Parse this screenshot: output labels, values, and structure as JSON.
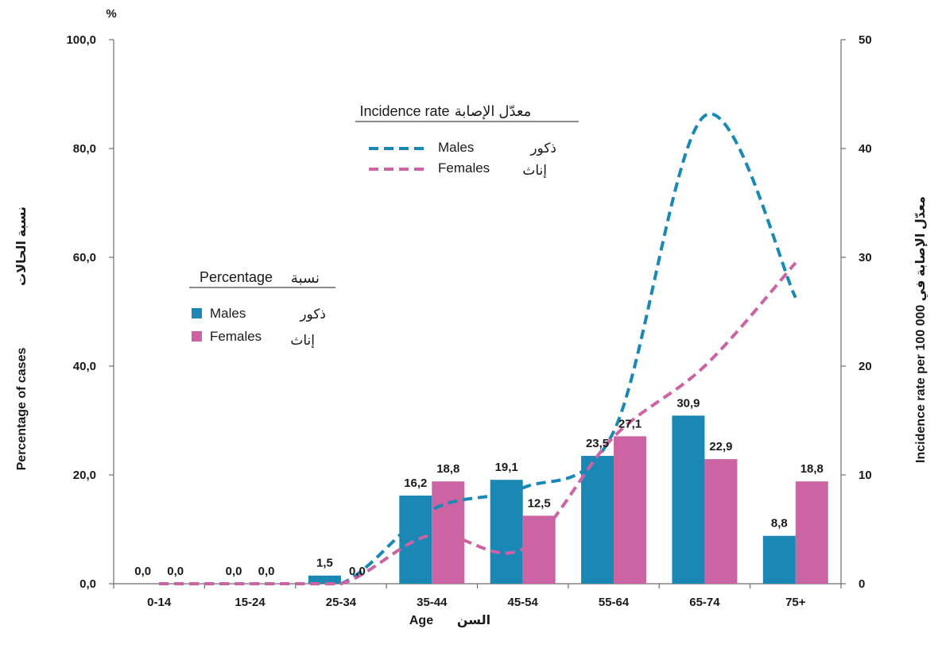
{
  "chart_data": {
    "type": "bar",
    "categories": [
      "0-14",
      "15-24",
      "25-34",
      "35-44",
      "45-54",
      "55-64",
      "65-74",
      "75+"
    ],
    "y_unit_label": "%",
    "ylabel": "Percentage of cases",
    "ylabel_arabic": "نسبة الحالات",
    "y2label": "Incidence rate per 100 000 معدّل الإصابة في",
    "xlabel": "Age",
    "xlabel_arabic": "السن",
    "ylim": [
      0,
      100
    ],
    "y2lim": [
      0,
      50
    ],
    "yticks": [
      "0,0",
      "20,0",
      "40,0",
      "60,0",
      "80,0",
      "100,0"
    ],
    "y2ticks": [
      "0",
      "10",
      "20",
      "30",
      "40",
      "50"
    ],
    "series": [
      {
        "name": "Males",
        "name_arabic": "ذكور",
        "kind": "bar",
        "axis": "left",
        "color": "#1a87b5",
        "values": [
          0.0,
          0.0,
          1.5,
          16.2,
          19.1,
          23.5,
          30.9,
          8.8
        ],
        "labels": [
          "0,0",
          "0,0",
          "1,5",
          "16,2",
          "19,1",
          "23,5",
          "30,9",
          "8,8"
        ]
      },
      {
        "name": "Females",
        "name_arabic": "إناث",
        "kind": "bar",
        "axis": "left",
        "color": "#cc63a3",
        "values": [
          0.0,
          0.0,
          0.0,
          18.8,
          12.5,
          27.1,
          22.9,
          18.8
        ],
        "labels": [
          "0,0",
          "0,0",
          "0,0",
          "18,8",
          "12,5",
          "27,1",
          "22,9",
          "18,8"
        ]
      },
      {
        "name": "Males",
        "name_arabic": "ذكور",
        "kind": "line",
        "axis": "right",
        "color": "#1a87b5",
        "values": [
          0.0,
          0.0,
          0.0,
          6.8,
          8.8,
          14.0,
          43.0,
          26.3
        ]
      },
      {
        "name": "Females",
        "name_arabic": "إناث",
        "kind": "line",
        "axis": "right",
        "color": "#cc63a3",
        "values": [
          0.0,
          0.0,
          0.0,
          4.5,
          3.2,
          13.5,
          20.0,
          29.5
        ]
      }
    ],
    "legends": {
      "bars": {
        "title": "Percentage",
        "title_arabic": "نسبة",
        "males": "Males",
        "males_arabic": "ذكور",
        "females": "Females",
        "females_arabic": "إناث"
      },
      "lines": {
        "title": "Incidence rate",
        "title_arabic": "معدّل الإصابة",
        "males": "Males",
        "males_arabic": "ذكور",
        "females": "Females",
        "females_arabic": "إناث"
      }
    },
    "grid": false
  }
}
